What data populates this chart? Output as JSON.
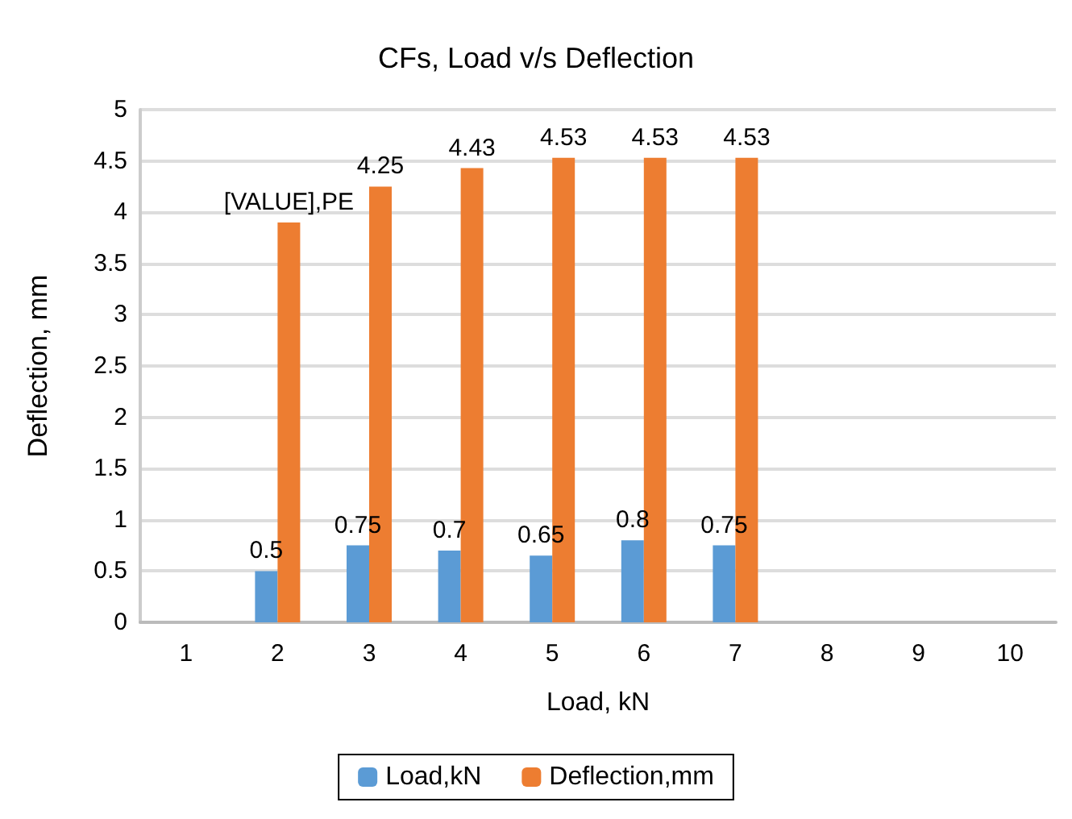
{
  "chart_data": {
    "type": "bar",
    "title": "CFs, Load v/s Deflection",
    "xlabel": "Load, kN",
    "ylabel": "Deflection, mm",
    "categories": [
      "1",
      "2",
      "3",
      "4",
      "5",
      "6",
      "7",
      "8",
      "9",
      "10"
    ],
    "series": [
      {
        "name": "Load,kN",
        "color": "#5b9bd5",
        "values": [
          null,
          0.5,
          0.75,
          0.7,
          0.65,
          0.8,
          0.75,
          null,
          null,
          null
        ],
        "value_labels": [
          null,
          "0.5",
          "0.75",
          "0.7",
          "0.65",
          "0.8",
          "0.75",
          null,
          null,
          null
        ]
      },
      {
        "name": "Deflection,mm",
        "color": "#ed7d31",
        "values": [
          null,
          3.9,
          4.25,
          4.43,
          4.53,
          4.53,
          4.53,
          null,
          null,
          null
        ],
        "value_labels": [
          null,
          "[VALUE],PE",
          "4.25",
          "4.43",
          "4.53",
          "4.53",
          "4.53",
          null,
          null,
          null
        ]
      }
    ],
    "ylim": [
      0,
      5
    ],
    "yticks": [
      0,
      0.5,
      1,
      1.5,
      2,
      2.5,
      3,
      3.5,
      4,
      4.5,
      5
    ],
    "grid": "y",
    "legend": "bottom"
  }
}
